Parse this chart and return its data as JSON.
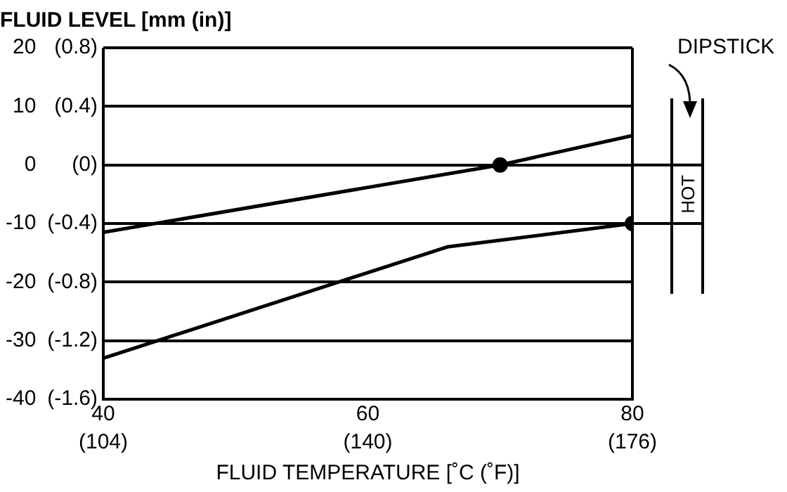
{
  "chart_data": {
    "type": "line",
    "title": "FLUID LEVEL [mm (in)]",
    "xlabel": "FLUID TEMPERATURE [˚C (˚F)]",
    "series": [
      {
        "color": "#000000",
        "x": [
          40,
          70,
          80
        ],
        "values": [
          -11.5,
          0,
          5
        ]
      },
      {
        "color": "#000000",
        "x": [
          40,
          66,
          80
        ],
        "values": [
          -33,
          -14,
          -10
        ]
      },
      {
        "type": "scatter",
        "marker": "circle",
        "color": "#000000",
        "x": [
          70,
          80
        ],
        "values": [
          0,
          -10
        ]
      }
    ],
    "xlim": [
      40,
      80
    ],
    "xticks": [
      40,
      60,
      80
    ],
    "x2lim": [
      104,
      176
    ],
    "x2ticks": [
      {
        "value": 104,
        "label": "(104)"
      },
      {
        "value": 140,
        "label": "(140)"
      },
      {
        "value": 176,
        "label": "(176)"
      }
    ],
    "ylim": [
      -40,
      20
    ],
    "yticks": [
      -40,
      -30,
      -20,
      -10,
      0,
      10,
      20
    ],
    "y2lim": [
      -1.6,
      0.8
    ],
    "y2ticks": [
      {
        "value": -1.6,
        "label": "(-1.6)"
      },
      {
        "value": -1.2,
        "label": "(-1.2)"
      },
      {
        "value": -0.8,
        "label": "(-0.8)"
      },
      {
        "value": -0.4,
        "label": "(-0.4)"
      },
      {
        "value": 0,
        "label": "(0)"
      },
      {
        "value": 0.4,
        "label": "(0.4)"
      },
      {
        "value": 0.8,
        "label": "(0.8)"
      }
    ],
    "grid": "y",
    "legend": false,
    "line_style": "solid",
    "marker": "none",
    "annotations": [
      "DIPSTICK",
      "HOT"
    ]
  }
}
